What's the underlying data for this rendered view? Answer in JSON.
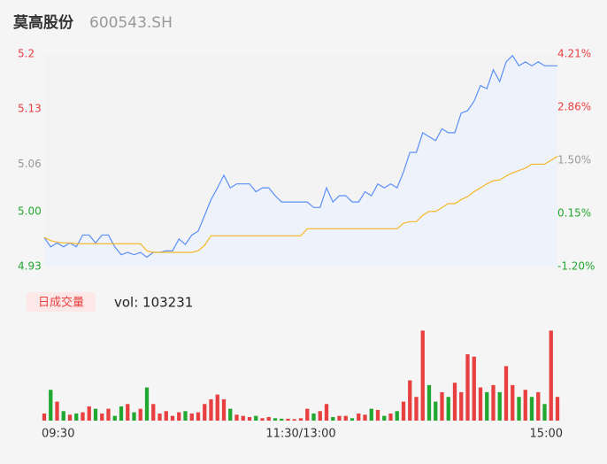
{
  "header": {
    "name": "莫高股份",
    "code": "600543.SH"
  },
  "chart_data": [
    {
      "type": "line",
      "x": [
        0,
        3,
        6,
        9,
        12,
        15,
        18,
        21,
        24,
        27,
        30,
        33,
        36,
        39,
        42,
        45,
        48,
        51,
        54,
        57,
        60,
        63,
        66,
        69,
        72,
        75,
        78,
        81,
        84,
        87,
        90,
        93,
        96,
        99,
        102,
        105,
        108,
        111,
        114,
        117,
        120,
        123,
        126,
        129,
        132,
        135,
        138,
        141,
        144,
        147,
        150,
        153,
        156,
        159,
        162,
        165,
        168,
        171,
        174,
        177,
        180,
        183,
        186,
        189,
        192,
        195,
        198,
        201,
        204,
        207,
        210,
        213,
        216,
        219,
        222,
        225,
        228,
        231,
        234,
        237,
        240
      ],
      "xlim": [
        0,
        240
      ],
      "series": [
        {
          "name": "price",
          "color": "#5b8ff9",
          "area_color": "#eef2fa",
          "values": [
            4.967,
            4.955,
            4.96,
            4.955,
            4.96,
            4.955,
            4.97,
            4.97,
            4.96,
            4.97,
            4.97,
            4.955,
            4.945,
            4.948,
            4.945,
            4.948,
            4.942,
            4.948,
            4.948,
            4.95,
            4.95,
            4.965,
            4.958,
            4.97,
            4.975,
            4.995,
            5.015,
            5.03,
            5.046,
            5.03,
            5.035,
            5.035,
            5.035,
            5.025,
            5.03,
            5.03,
            5.02,
            5.012,
            5.012,
            5.012,
            5.012,
            5.012,
            5.005,
            5.005,
            5.03,
            5.012,
            5.02,
            5.02,
            5.012,
            5.012,
            5.025,
            5.02,
            5.035,
            5.03,
            5.035,
            5.03,
            5.05,
            5.075,
            5.075,
            5.1,
            5.095,
            5.09,
            5.105,
            5.1,
            5.1,
            5.125,
            5.128,
            5.14,
            5.16,
            5.156,
            5.18,
            5.165,
            5.19,
            5.198,
            5.185,
            5.19,
            5.185,
            5.19,
            5.185,
            5.185,
            5.185
          ]
        },
        {
          "name": "average",
          "color": "#f5b829",
          "values": [
            4.967,
            4.963,
            4.961,
            4.96,
            4.96,
            4.959,
            4.959,
            4.959,
            4.959,
            4.959,
            4.959,
            4.959,
            4.959,
            4.959,
            4.959,
            4.959,
            4.95,
            4.948,
            4.948,
            4.948,
            4.948,
            4.948,
            4.948,
            4.948,
            4.95,
            4.957,
            4.969,
            4.969,
            4.969,
            4.969,
            4.969,
            4.969,
            4.969,
            4.969,
            4.969,
            4.969,
            4.969,
            4.969,
            4.969,
            4.969,
            4.969,
            4.978,
            4.978,
            4.978,
            4.978,
            4.978,
            4.978,
            4.978,
            4.978,
            4.978,
            4.978,
            4.978,
            4.978,
            4.978,
            4.978,
            4.978,
            4.985,
            4.987,
            4.987,
            4.995,
            5.0,
            5.0,
            5.005,
            5.01,
            5.01,
            5.015,
            5.019,
            5.025,
            5.03,
            5.035,
            5.039,
            5.04,
            5.045,
            5.049,
            5.052,
            5.055,
            5.06,
            5.06,
            5.06,
            5.065,
            5.07
          ]
        }
      ],
      "ylim": [
        4.93,
        5.2
      ],
      "yticks": [
        5.2,
        5.13,
        5.06,
        {
          "value": 5.0,
          "label": "5.00"
        },
        4.93
      ],
      "y2lim": [
        -1.2,
        4.21
      ],
      "y2ticks": [
        {
          "value": 4.21,
          "label": "4.21%"
        },
        {
          "value": 2.86,
          "label": "2.86%"
        },
        {
          "value": 1.5,
          "label": "1.50%"
        },
        {
          "value": 0.15,
          "label": "0.15%"
        },
        {
          "value": -1.2,
          "label": "-1.20%"
        }
      ],
      "tick_colors": [
        "#e84040",
        "#e84040",
        "#999999",
        "#22a830",
        "#22a830"
      ]
    },
    {
      "type": "bar",
      "title": "日成交量",
      "subtitle": "vol: 103231",
      "up_color": "#e84040",
      "down_color": "#22a830",
      "x": [
        0,
        3,
        6,
        9,
        12,
        15,
        18,
        21,
        24,
        27,
        30,
        33,
        36,
        39,
        42,
        45,
        48,
        51,
        54,
        57,
        60,
        63,
        66,
        69,
        72,
        75,
        78,
        81,
        84,
        87,
        90,
        93,
        96,
        99,
        102,
        105,
        108,
        111,
        114,
        117,
        120,
        123,
        126,
        129,
        132,
        135,
        138,
        141,
        144,
        147,
        150,
        153,
        156,
        159,
        162,
        165,
        168,
        171,
        174,
        177,
        180,
        183,
        186,
        189,
        192,
        195,
        198,
        201,
        204,
        207,
        210,
        213,
        216,
        219,
        222,
        225,
        228,
        231,
        234,
        237,
        240
      ],
      "xlim": [
        0,
        240
      ],
      "values": [
        300,
        1300,
        800,
        400,
        250,
        300,
        350,
        600,
        500,
        300,
        500,
        200,
        600,
        700,
        350,
        500,
        1400,
        700,
        300,
        400,
        200,
        350,
        400,
        300,
        350,
        700,
        900,
        1100,
        900,
        500,
        250,
        200,
        150,
        200,
        100,
        150,
        100,
        80,
        80,
        60,
        100,
        500,
        300,
        400,
        700,
        150,
        200,
        200,
        100,
        300,
        250,
        500,
        450,
        200,
        300,
        400,
        800,
        1700,
        1000,
        3800,
        1500,
        800,
        1200,
        1000,
        1600,
        1200,
        2800,
        2700,
        1400,
        1200,
        1500,
        1200,
        2300,
        1500,
        1000,
        1300,
        1000,
        1200,
        700,
        3800,
        1000
      ],
      "ylim": [
        0,
        4000
      ],
      "xticks": [
        {
          "value": 0,
          "label": "09:30"
        },
        {
          "value": 120,
          "label": "11:30/13:00"
        },
        {
          "value": 240,
          "label": "15:00"
        }
      ]
    }
  ]
}
